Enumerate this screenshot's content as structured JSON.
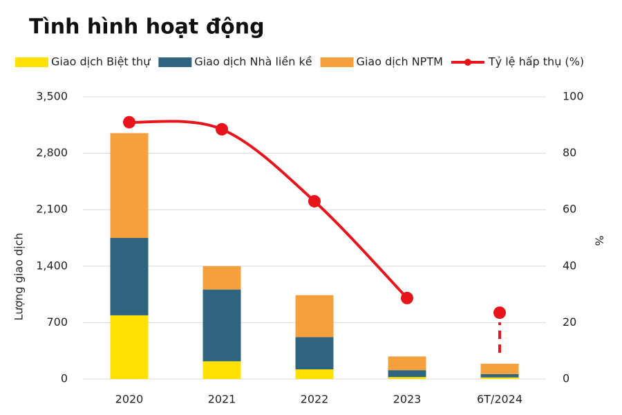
{
  "chart_data": {
    "type": "bar",
    "stacked": true,
    "title": "Tình hình hoạt động",
    "categories": [
      "2020",
      "2021",
      "2022",
      "2023",
      "6T/2024"
    ],
    "series": [
      {
        "name": "Giao dịch Biệt thự",
        "color": "#FFE000",
        "values": [
          790,
          220,
          120,
          25,
          20
        ]
      },
      {
        "name": "Giao dịch Nhà liền kề",
        "color": "#2E6480",
        "values": [
          960,
          890,
          400,
          85,
          40
        ]
      },
      {
        "name": "Giao dịch NPTM",
        "color": "#F4A03C",
        "values": [
          1300,
          290,
          520,
          170,
          130
        ]
      },
      {
        "name": "Tỷ lệ hấp thụ (%)",
        "color": "#E8131B",
        "type": "line",
        "axis": "y2",
        "values": [
          91,
          88.5,
          63,
          28.7,
          23.5
        ]
      }
    ],
    "ylabel": "Lượng giao dịch",
    "y2label": "%",
    "ylim": [
      0,
      3500
    ],
    "yticks": [
      0,
      700,
      {
        "value": 1400,
        "label": "1,400"
      },
      {
        "value": 2100,
        "label": "2,100"
      },
      {
        "value": 2800,
        "label": "2,800"
      },
      {
        "value": 3500,
        "label": "3,500"
      }
    ],
    "y2lim": [
      0,
      100
    ],
    "y2ticks": [
      0,
      20,
      40,
      60,
      80,
      100
    ],
    "grid": true
  }
}
